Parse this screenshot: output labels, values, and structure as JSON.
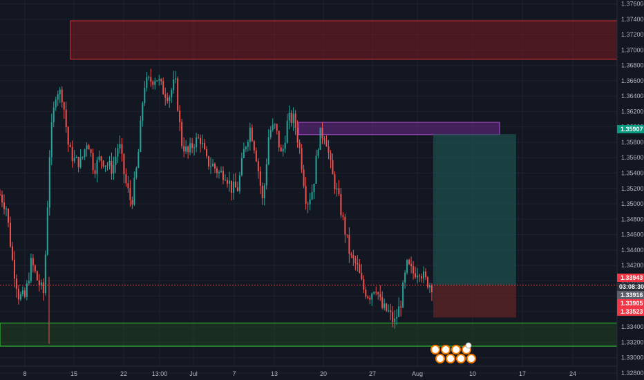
{
  "colors": {
    "background": "#131722",
    "grid": "#1f2330",
    "up": "#26a69a",
    "down": "#ef5350",
    "resistance_zone": "#8b1a1f",
    "supply_zone": "#6a2a8a",
    "demand_zone": "#1f3f1f",
    "long_target": "#1e5553",
    "long_stop": "#5a2326",
    "current_price_bg": "#f23645",
    "target_price_bg": "#089981",
    "countdown_bg": "#2a2e39"
  },
  "chart_data": {
    "type": "candlestick",
    "ylim": [
      1.3271,
      1.3765
    ],
    "y_ticks": [
      "1.32800",
      "1.33000",
      "1.33200",
      "1.33400",
      "1.33600",
      "1.33800",
      "1.34000",
      "1.34200",
      "1.34400",
      "1.34600",
      "1.34800",
      "1.35000",
      "1.35200",
      "1.35400",
      "1.35600",
      "1.35800",
      "1.36000",
      "1.36200",
      "1.36400",
      "1.36600",
      "1.36800",
      "1.37000",
      "1.37200",
      "1.37400",
      "1.37600"
    ],
    "x_ticks": [
      "8",
      "15",
      "22",
      "13:00",
      "Jul",
      "7",
      "13",
      "20",
      "27",
      "Aug",
      "10",
      "17",
      "24"
    ],
    "series_path": [
      1.3512,
      1.3495,
      1.3425,
      1.338,
      1.3378,
      1.3425,
      1.34,
      1.3383,
      1.358,
      1.365,
      1.364,
      1.357,
      1.3555,
      1.3555,
      1.3585,
      1.3545,
      1.356,
      1.3552,
      1.3545,
      1.358,
      1.353,
      1.35,
      1.3555,
      1.3655,
      1.366,
      1.3665,
      1.3648,
      1.364,
      1.366,
      1.358,
      1.3565,
      1.358,
      1.3585,
      1.3555,
      1.355,
      1.354,
      1.354,
      1.352,
      1.352,
      1.357,
      1.36,
      1.356,
      1.35,
      1.3595,
      1.36,
      1.356,
      1.361,
      1.361,
      1.3565,
      1.35,
      1.352,
      1.359,
      1.359,
      1.354,
      1.351,
      1.347,
      1.343,
      1.342,
      1.339,
      1.338,
      1.3395,
      1.3365,
      1.336,
      1.3345,
      1.337,
      1.342,
      1.341,
      1.3415,
      1.34,
      1.3394
    ],
    "zones": [
      {
        "name": "resistance",
        "y1": 1.3688,
        "y2": 1.3738
      },
      {
        "name": "supply",
        "y1": 1.359,
        "y2": 1.3606
      },
      {
        "name": "demand",
        "y1": 1.3315,
        "y2": 1.3345
      },
      {
        "name": "long-target",
        "y1": 1.33943,
        "y2": 1.35907
      },
      {
        "name": "long-stop",
        "y1": 1.33523,
        "y2": 1.33943
      }
    ],
    "current_price": 1.33943
  },
  "price_tags": {
    "target": "1.35907",
    "current": "1.33943",
    "countdown": "03:08:30",
    "last": "1.33916",
    "p2": "1.33905",
    "stop": "1.33523"
  }
}
